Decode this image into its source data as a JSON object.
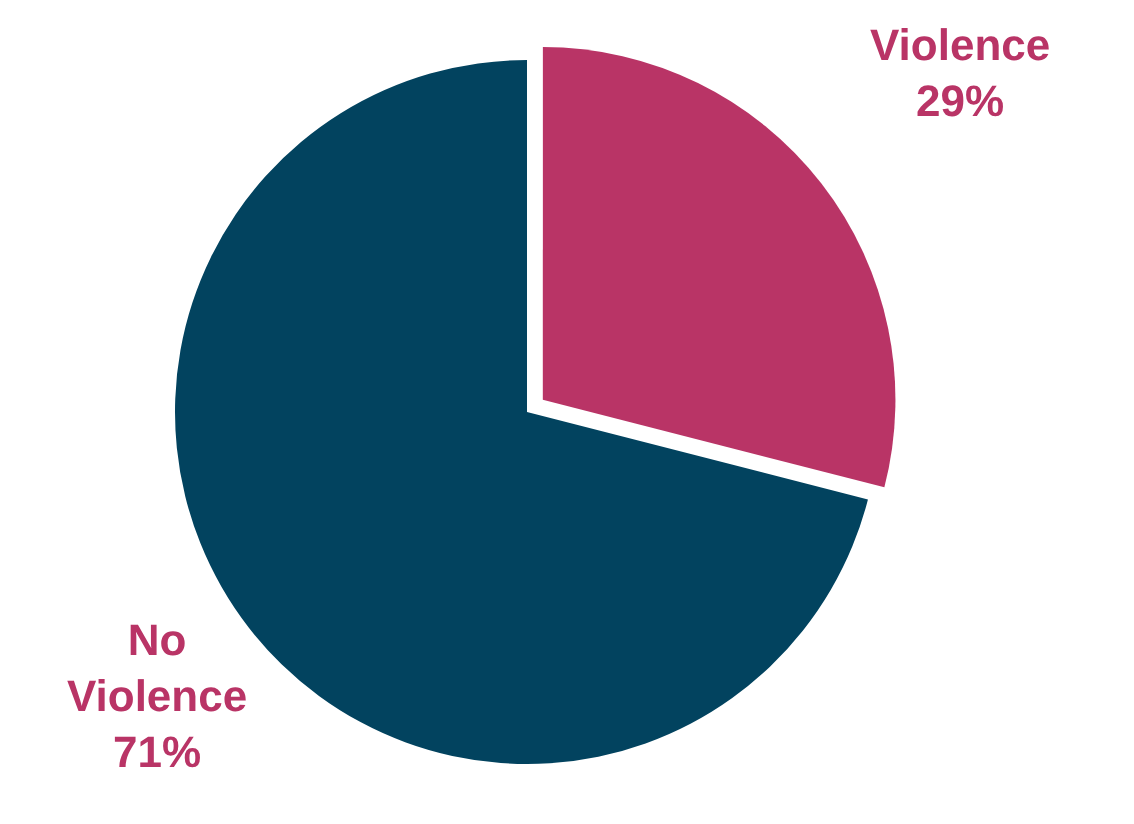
{
  "chart_data": {
    "type": "pie",
    "categories": [
      "Violence",
      "No Violence"
    ],
    "values": [
      29,
      71
    ],
    "colors": [
      "#b93466",
      "#02435f"
    ],
    "value_labels": [
      "29%",
      "71%"
    ],
    "legend": false
  }
}
